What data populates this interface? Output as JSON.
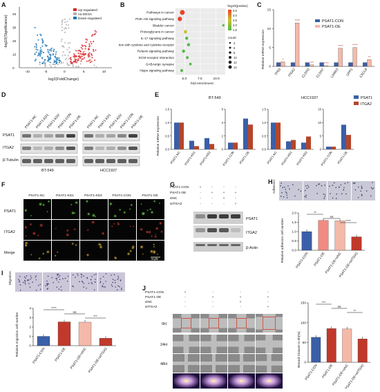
{
  "figure": {
    "panel_letters": [
      "A",
      "B",
      "C",
      "D",
      "E",
      "F",
      "G",
      "H",
      "I",
      "J"
    ]
  },
  "panelA": {
    "legend": [
      "Up-regulated",
      "no-DEGs",
      "Down-regulated"
    ],
    "colors": {
      "up": "#d62728",
      "none": "#b0b0b0",
      "down": "#1f77b4"
    },
    "ylabel": "-log10(Significance)",
    "xlabel": "log2(FoldChange)",
    "xticks": [
      "-10",
      "-5",
      "0",
      "5",
      "10"
    ],
    "yticks": [
      "0",
      "10",
      "20",
      "30",
      "40"
    ]
  },
  "chart_data": [
    {
      "panel": "B",
      "type": "scatter",
      "xlabel": "fold enrichment",
      "xticks": [
        "5.0",
        "7.5",
        "10.0"
      ],
      "xlim": [
        3.5,
        11.5
      ],
      "categories": [
        "Pathways in cancer",
        "PI3K-Akt signaling pathway",
        "Bladder cancer",
        "Proteoglycans in cancer",
        "IL-17 signaling pathway",
        "Viral protein interaction with cytokine and cytokine receptor",
        "Relaxin signaling pathway",
        "ECM-receptor interaction",
        "GABAergic synapse",
        "Hippo signaling pathway"
      ],
      "x": [
        4.6,
        4.2,
        11.2,
        5.1,
        5.3,
        5.6,
        4.8,
        5.4,
        5.9,
        4.5
      ],
      "neglog10p": [
        3.5,
        3.0,
        1.6,
        2.3,
        2.1,
        1.9,
        2.0,
        2.0,
        1.8,
        1.9
      ],
      "count": [
        14,
        12,
        4,
        8,
        7,
        7,
        7,
        6,
        5,
        6
      ],
      "color_legend_title": "-log10(pvalue)",
      "color_legend_ticks": [
        "3.5",
        "3.0",
        "2.5",
        "2.0",
        "1.5"
      ],
      "size_legend_title": "count",
      "size_legend_values": [
        "4",
        "6",
        "8",
        "10",
        "12",
        "14"
      ]
    },
    {
      "panel": "C",
      "type": "bar",
      "ylabel": "Relative mRNA expression",
      "yticks": [
        "0",
        "5",
        "10",
        "15"
      ],
      "ylim": [
        0,
        15
      ],
      "categories": [
        "TP63",
        "ITGA2",
        "CLDN3",
        "CLDN7",
        "LAMA3",
        "UPP1",
        "CXCL8"
      ],
      "series": [
        {
          "name": "PSAT1-CON",
          "values": [
            1,
            1,
            1,
            1,
            1,
            1,
            1
          ],
          "color": "#3a5fa8"
        },
        {
          "name": "PSAT1-OE",
          "values": [
            1.2,
            11.5,
            0.4,
            0.2,
            4.8,
            5.0,
            1.8
          ],
          "color": "#f4b9a8"
        }
      ],
      "sig": [
        "*",
        "****",
        "***",
        "****",
        "****",
        "****",
        "**"
      ]
    },
    {
      "panel": "E",
      "type": "bar",
      "ylabel": "Relative mRNA expression",
      "groups": [
        "BT-549",
        "HCC1937"
      ],
      "legend": [
        "PSAT1",
        "ITGA2"
      ],
      "colors": {
        "PSAT1": "#3a5fa8",
        "ITGA2": "#b5452a"
      },
      "subplots": [
        {
          "cell": "BT-549",
          "ylim": [
            0,
            1.5
          ],
          "yticks": [
            "0.0",
            "0.5",
            "1.0",
            "1.5"
          ],
          "categories": [
            "PSAT1-NC",
            "PSAT1-KD1",
            "PSAT1-KD2"
          ],
          "PSAT1": [
            1.0,
            0.32,
            0.42
          ],
          "ITGA2": [
            1.0,
            0.12,
            0.2
          ]
        },
        {
          "cell": "BT-549",
          "ylim": [
            0,
            6
          ],
          "yticks": [
            "0",
            "2",
            "4",
            "6"
          ],
          "categories": [
            "PSAT1-CON",
            "PSAT1-OE"
          ],
          "PSAT1": [
            1.0,
            4.6
          ],
          "ITGA2": [
            1.0,
            3.7
          ]
        },
        {
          "cell": "HCC1937",
          "ylim": [
            0,
            1.5
          ],
          "yticks": [
            "0.0",
            "0.5",
            "1.0",
            "1.5"
          ],
          "categories": [
            "PSAT1-NC",
            "PSAT1-KD1",
            "PSAT1-KD2"
          ],
          "PSAT1": [
            1.0,
            0.3,
            0.25
          ],
          "ITGA2": [
            1.0,
            0.35,
            0.48
          ]
        },
        {
          "cell": "HCC1937",
          "ylim": [
            0,
            15
          ],
          "yticks": [
            "0",
            "5",
            "10",
            "15"
          ],
          "categories": [
            "PSAT1-CON",
            "PSAT1-OE"
          ],
          "PSAT1": [
            1.0,
            9.2
          ],
          "ITGA2": [
            1.0,
            5.4
          ]
        }
      ]
    },
    {
      "panel": "H",
      "type": "bar",
      "ylabel": "Relative adhesion cell number",
      "yticks": [
        "0.0",
        "0.5",
        "1.0",
        "1.5",
        "2.0"
      ],
      "ylim": [
        0,
        2.0
      ],
      "categories": [
        "PSAT1-CON",
        "PSAT1-OE",
        "PSAT1-OE+siNC",
        "PSAT1-OE+siITGA2"
      ],
      "values": [
        1.0,
        1.6,
        1.58,
        0.72
      ],
      "colors": [
        "#3a5fa8",
        "#f28b82",
        "#f4b9a8",
        "#c0392b"
      ],
      "sig": [
        "**",
        "ns",
        "****"
      ]
    },
    {
      "panel": "I",
      "type": "bar",
      "ylabel": "Relative migration cell number",
      "yticks": [
        "0",
        "1",
        "2",
        "3",
        "4"
      ],
      "ylim": [
        0,
        4
      ],
      "categories": [
        "PSAT1-CON",
        "PSAT1-OE",
        "PSAT1-OE+siNC",
        "PSAT1-OE+siITGA2"
      ],
      "values": [
        1.0,
        2.55,
        2.52,
        0.8
      ],
      "colors": [
        "#3a5fa8",
        "#c0392b",
        "#f4b9a8",
        "#c0392b"
      ],
      "sig": [
        "****",
        "ns",
        "***"
      ]
    },
    {
      "panel": "J",
      "type": "bar",
      "ylabel": "Wound Closure to 0h(%)",
      "yticks": [
        "0",
        "50",
        "100",
        "150"
      ],
      "ylim": [
        0,
        150
      ],
      "categories": [
        "PSAT1-CON",
        "PSAT1-OE",
        "PSAT1-OE+siNC",
        "PSAT1-OE+siITGA2"
      ],
      "values": [
        63,
        85,
        84,
        59
      ],
      "colors": [
        "#3a5fa8",
        "#c0392b",
        "#f4b9a8",
        "#c0392b"
      ],
      "sig": [
        "***",
        "ns",
        "**"
      ]
    }
  ],
  "panelD": {
    "lanes": [
      "PSAT1-NC",
      "PSAT1-KD1",
      "PSAT1-KD2",
      "PSAT1-CON",
      "PSAT1-OE"
    ],
    "rows": [
      "PSAT1",
      "ITGA2",
      "β-Tubulin"
    ],
    "cells": [
      "BT-549",
      "HCC1937"
    ]
  },
  "panelF": {
    "cols": [
      "PSAT1-NC",
      "PSAT1-KD1",
      "PSAT1-KD2",
      "PSAT1-CON",
      "PSAT1-OE"
    ],
    "rows": [
      "PSAT1",
      "ITGA2",
      "Merge"
    ],
    "scale": "50μm"
  },
  "panelG": {
    "conditions": [
      "PSAT1-CON",
      "PSAT1-OE",
      "siNC",
      "siITGA2"
    ],
    "signs": [
      [
        "+",
        "-",
        "-",
        "-"
      ],
      [
        "-",
        "+",
        "+",
        "+"
      ],
      [
        "-",
        "-",
        "+",
        "-"
      ],
      [
        "-",
        "-",
        "-",
        "+"
      ]
    ],
    "rows": [
      "PSAT1",
      "ITGA2",
      "β-Actin"
    ]
  },
  "panelH": {
    "strip_label": "Adhesion"
  },
  "panelI": {
    "strip_label": "Migration"
  },
  "panelJ": {
    "conditions": [
      "PSAT1-CON",
      "PSAT1-OE",
      "siNC",
      "siITGA2"
    ],
    "signs": [
      [
        "+",
        "-",
        "-",
        "-"
      ],
      [
        "-",
        "+",
        "+",
        "+"
      ],
      [
        "-",
        "-",
        "+",
        "-"
      ],
      [
        "-",
        "-",
        "-",
        "+"
      ]
    ],
    "times": [
      "0H",
      "24H",
      "48H"
    ]
  }
}
